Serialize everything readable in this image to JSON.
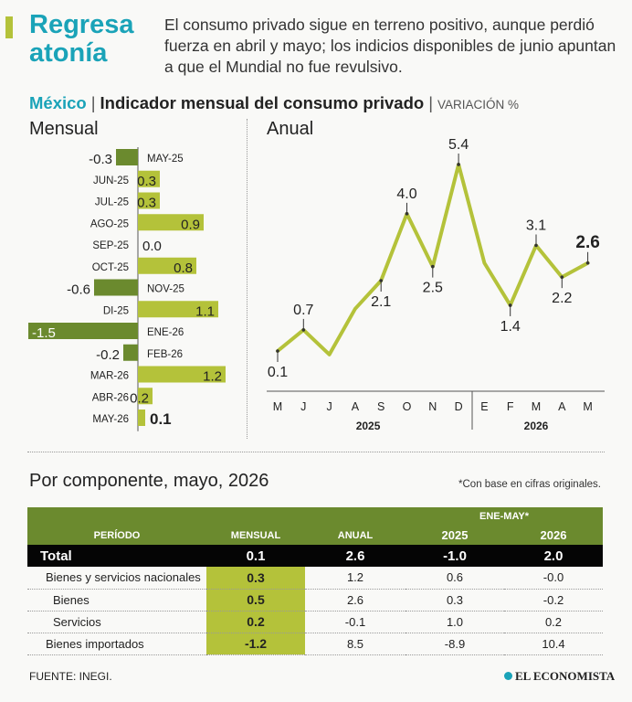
{
  "header": {
    "headline": "Regresa atonía",
    "intro": "El consumo privado sigue en terreno positivo, aunque perdió fuerza en abril y mayo; los indicios disponibles de junio apuntan a que el Mundial no fue revulsivo."
  },
  "subhead": {
    "country": "México",
    "title": "Indicador mensual del consumo privado",
    "unit": "VARIACIÓN %"
  },
  "colors": {
    "teal": "#1aa3b8",
    "positive_bar": "#b4c23a",
    "negative_bar": "#6b8a2e",
    "table_header": "#6b8a2e",
    "total_row": "#050505"
  },
  "chart_data": [
    {
      "type": "bar",
      "orientation": "horizontal",
      "title": "Mensual",
      "categories": [
        "MAY-25",
        "JUN-25",
        "JUL-25",
        "AGO-25",
        "SEP-25",
        "OCT-25",
        "NOV-25",
        "DI-25",
        "ENE-26",
        "FEB-26",
        "MAR-26",
        "ABR-26",
        "MAY-26"
      ],
      "values": [
        -0.3,
        0.3,
        0.3,
        0.9,
        0.0,
        0.8,
        -0.6,
        1.1,
        -1.5,
        -0.2,
        1.2,
        0.2,
        0.1
      ],
      "value_labels": [
        "-0.3",
        "0.3",
        "0.3",
        "0.9",
        "0.0",
        "0.8",
        "-0.6",
        "1.1",
        "-1.5",
        "-0.2",
        "1.2",
        "0.2",
        "0.1"
      ],
      "highlight_last": true
    },
    {
      "type": "line",
      "title": "Anual",
      "x": [
        "M",
        "J",
        "J",
        "A",
        "S",
        "O",
        "N",
        "D",
        "E",
        "F",
        "M",
        "A",
        "M"
      ],
      "year_labels": [
        "2025",
        "2026"
      ],
      "values": [
        0.1,
        0.7,
        0.0,
        1.3,
        2.1,
        4.0,
        2.5,
        5.4,
        2.6,
        1.4,
        3.1,
        2.2,
        2.6
      ],
      "labels": [
        {
          "index": 0,
          "text": "0.1",
          "pos": "below"
        },
        {
          "index": 1,
          "text": "0.7",
          "pos": "above"
        },
        {
          "index": 4,
          "text": "2.1",
          "pos": "below"
        },
        {
          "index": 5,
          "text": "4.0",
          "pos": "above"
        },
        {
          "index": 6,
          "text": "2.5",
          "pos": "below"
        },
        {
          "index": 7,
          "text": "5.4",
          "pos": "above"
        },
        {
          "index": 9,
          "text": "1.4",
          "pos": "below"
        },
        {
          "index": 10,
          "text": "3.1",
          "pos": "above"
        },
        {
          "index": 11,
          "text": "2.2",
          "pos": "below"
        },
        {
          "index": 12,
          "text": "2.6",
          "pos": "above",
          "bold": true
        }
      ]
    }
  ],
  "table": {
    "title": "Por componente, mayo, 2026",
    "note": "*Con base en cifras originales.",
    "group_header": "ENE-MAY*",
    "columns": [
      "PERÍODO",
      "MENSUAL",
      "ANUAL",
      "2025",
      "2026"
    ],
    "total": {
      "name": "Total",
      "mensual": "0.1",
      "anual": "2.6",
      "y2025": "-1.0",
      "y2026": "2.0"
    },
    "rows": [
      {
        "name": "Bienes y servicios nacionales",
        "mensual": "0.3",
        "anual": "1.2",
        "y2025": "0.6",
        "y2026": "-0.0"
      },
      {
        "name": "Bienes",
        "mensual": "0.5",
        "anual": "2.6",
        "y2025": "0.3",
        "y2026": "-0.2"
      },
      {
        "name": "Servicios",
        "mensual": "0.2",
        "anual": "-0.1",
        "y2025": "1.0",
        "y2026": "0.2"
      },
      {
        "name": "Bienes importados",
        "mensual": "-1.2",
        "anual": "8.5",
        "y2025": "-8.9",
        "y2026": "10.4"
      }
    ]
  },
  "footer": {
    "source": "FUENTE:  INEGI.",
    "brand": "EL ECONOMISTA"
  }
}
